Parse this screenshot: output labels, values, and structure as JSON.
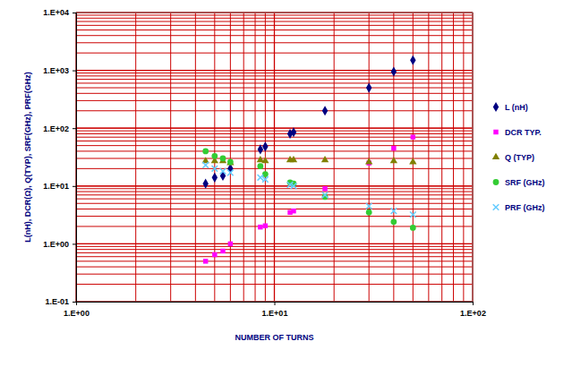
{
  "chart_data": {
    "type": "scatter",
    "x_label": "NUMBER OF TURNS",
    "y_label": "L(nH), DCR(Ω), Q(TYP), SRF(GHz), PRF(GHz)",
    "log": true,
    "grid": true,
    "legend": "right",
    "xlim": [
      1,
      100
    ],
    "ylim": [
      0.1,
      10000
    ],
    "xticks": [
      {
        "value": 1,
        "label": "1.E+00"
      },
      {
        "value": 10,
        "label": "1.E+01"
      },
      {
        "value": 100,
        "label": "1.E+02"
      }
    ],
    "yticks": [
      {
        "value": 0.1,
        "label": "1.E-01"
      },
      {
        "value": 1,
        "label": "1.E+00"
      },
      {
        "value": 10,
        "label": "1.E+01"
      },
      {
        "value": 100,
        "label": "1.E+02"
      },
      {
        "value": 1000,
        "label": "1.E+03"
      },
      {
        "value": 10000,
        "label": "1.E+04"
      }
    ],
    "x": [
      4.5,
      5,
      5.5,
      6,
      8.5,
      9,
      12,
      12.5,
      18,
      30,
      40,
      50
    ],
    "series": [
      {
        "name": "L (nH)",
        "color": "#000080",
        "marker": "diamond",
        "values": [
          11,
          14,
          15,
          20,
          43,
          48,
          80,
          85,
          200,
          500,
          950,
          1500
        ]
      },
      {
        "name": "DCR TYP.",
        "color": "#ff00ff",
        "marker": "square",
        "values": [
          0.5,
          0.65,
          0.75,
          1.0,
          1.95,
          2.05,
          3.5,
          3.7,
          9,
          25,
          45,
          70
        ]
      },
      {
        "name": "Q (TYP)",
        "color": "#808000",
        "marker": "triangle",
        "values": [
          27,
          27,
          27,
          25,
          28,
          27,
          28,
          28,
          28,
          26,
          27,
          26
        ]
      },
      {
        "name": "SRF (GHz)",
        "color": "#33cc33",
        "marker": "circle",
        "values": [
          40,
          33,
          30,
          26,
          22,
          16,
          11.5,
          11,
          6.5,
          3.5,
          2.4,
          1.9
        ]
      },
      {
        "name": "PRF (GHz)",
        "color": "#66ccff",
        "marker": "x",
        "values": [
          23,
          20,
          18,
          17,
          14,
          13,
          10.5,
          10,
          7,
          4.5,
          3.7,
          3.2
        ]
      }
    ]
  }
}
